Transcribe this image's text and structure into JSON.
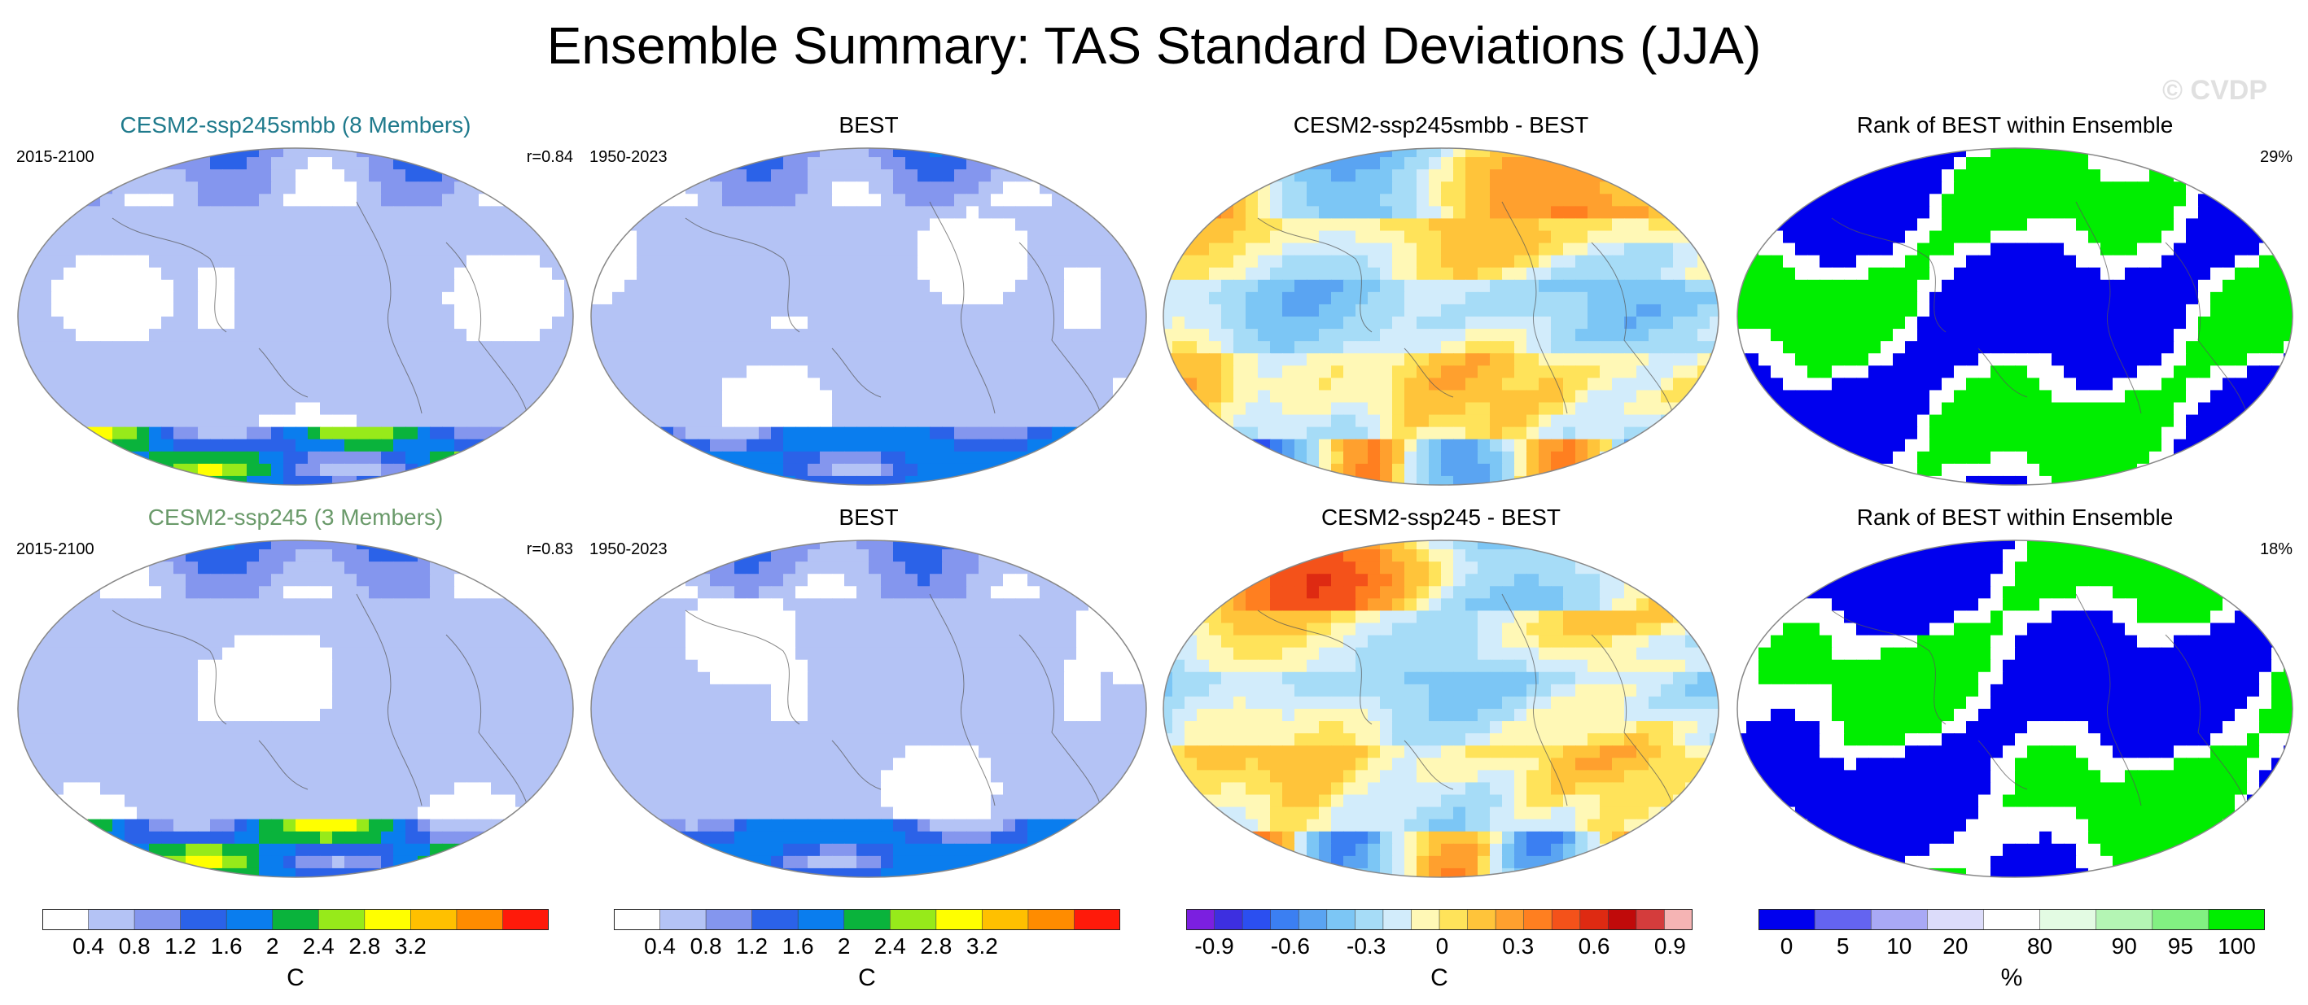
{
  "figure_title": "Ensemble Summary: TAS Standard Deviations (JJA)",
  "watermark": "© CVDP",
  "colors": {
    "std_scale": [
      "#ffffff",
      "#b4c3f5",
      "#8496ee",
      "#2b62e8",
      "#0a7dee",
      "#0ab33c",
      "#97ea1a",
      "#ffff00",
      "#ffc000",
      "#ff8c00",
      "#ff1a0a"
    ],
    "diff_scale": [
      "#7b1fe0",
      "#3d2fe0",
      "#2b4ff0",
      "#3b7ff2",
      "#5aa4f2",
      "#7cc6f5",
      "#a6dcf7",
      "#d2ecfb",
      "#fff8b6",
      "#ffe35a",
      "#ffc43a",
      "#ffa02e",
      "#ff7f20",
      "#f4521a",
      "#de2a12",
      "#c00a0a",
      "#d43c3c",
      "#f5b4b4"
    ],
    "rank_scale": [
      "#0000ee",
      "#6464f0",
      "#a9a9f5",
      "#dcdcfa",
      "#ffffff",
      "#e3fbe3",
      "#b4f5b4",
      "#82f082",
      "#00ee00"
    ]
  },
  "chart_data": [
    {
      "type": "heatmap",
      "title": "CESM2-ssp245smbb (8 Members)",
      "title_color": "#1f7a8c",
      "left_label": "2015-2100",
      "right_label": "r=0.84",
      "fill": "std",
      "colorbar": "std"
    },
    {
      "type": "heatmap",
      "title": "BEST",
      "left_label": "1950-2023",
      "right_label": "",
      "fill": "std_obs",
      "colorbar": "std"
    },
    {
      "type": "heatmap",
      "title": "CESM2-ssp245smbb - BEST",
      "left_label": "",
      "right_label": "",
      "fill": "diff",
      "colorbar": "diff"
    },
    {
      "type": "heatmap",
      "title": "Rank of BEST within Ensemble",
      "left_label": "",
      "right_label": "29%",
      "fill": "rank",
      "colorbar": "rank"
    },
    {
      "type": "heatmap",
      "title": "CESM2-ssp245 (3 Members)",
      "title_color": "#6a9a6a",
      "left_label": "2015-2100",
      "right_label": "r=0.83",
      "fill": "std",
      "colorbar": "std"
    },
    {
      "type": "heatmap",
      "title": "BEST",
      "left_label": "1950-2023",
      "right_label": "",
      "fill": "std_obs",
      "colorbar": "std"
    },
    {
      "type": "heatmap",
      "title": "CESM2-ssp245 - BEST",
      "left_label": "",
      "right_label": "",
      "fill": "diff",
      "colorbar": "diff"
    },
    {
      "type": "heatmap",
      "title": "Rank of BEST within Ensemble",
      "left_label": "",
      "right_label": "18%",
      "fill": "rank",
      "colorbar": "rank"
    }
  ],
  "colorbars": {
    "std": {
      "labels": [
        "0.4",
        "0.8",
        "1.2",
        "1.6",
        "2",
        "2.4",
        "2.8",
        "3.2"
      ],
      "levels": [
        0.4,
        0.8,
        1.2,
        1.6,
        2,
        2.4,
        2.8,
        3.2
      ],
      "unit": "C",
      "range": [
        0,
        3.6
      ]
    },
    "diff": {
      "labels": [
        "-0.9",
        "-0.6",
        "-0.3",
        "0",
        "0.3",
        "0.6",
        "0.9"
      ],
      "levels": [
        -0.9,
        -0.6,
        -0.3,
        0,
        0.3,
        0.6,
        0.9
      ],
      "unit": "C",
      "range": [
        -1.2,
        1.2
      ]
    },
    "rank": {
      "labels": [
        "0",
        "5",
        "10",
        "20",
        "80",
        "90",
        "95",
        "100"
      ],
      "levels": [
        0,
        5,
        10,
        20,
        80,
        90,
        95,
        100
      ],
      "unit": "%"
    }
  }
}
